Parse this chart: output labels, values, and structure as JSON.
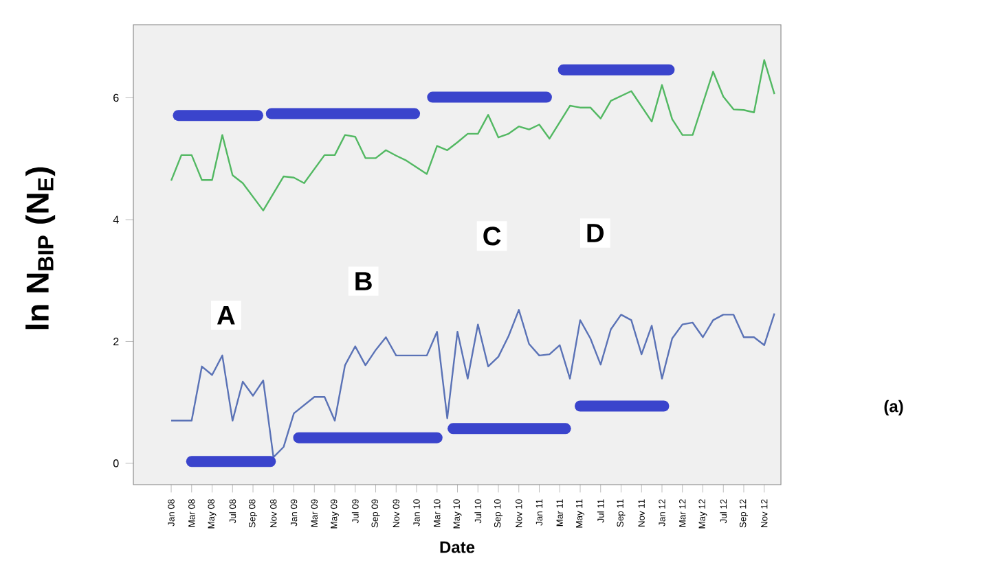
{
  "chart_data": {
    "type": "line",
    "xlabel": "Date",
    "ylabel": "ln N$_{BIP}$ (N$_{E}$)",
    "xlim": [
      "2007-09-10",
      "2012-12-20"
    ],
    "ylim": [
      -0.35,
      7.2
    ],
    "yticks": [
      0,
      2,
      4,
      6
    ],
    "xticks": [
      {
        "value": "2008-01",
        "label": "Jan 08"
      },
      {
        "value": "2008-03",
        "label": "Mar 08"
      },
      {
        "value": "2008-05",
        "label": "May 08"
      },
      {
        "value": "2008-07",
        "label": "Jul 08"
      },
      {
        "value": "2008-09",
        "label": "Sep 08"
      },
      {
        "value": "2008-11",
        "label": "Nov 08"
      },
      {
        "value": "2009-01",
        "label": "Jan 09"
      },
      {
        "value": "2009-03",
        "label": "Mar 09"
      },
      {
        "value": "2009-05",
        "label": "May 09"
      },
      {
        "value": "2009-07",
        "label": "Jul 09"
      },
      {
        "value": "2009-09",
        "label": "Sep 09"
      },
      {
        "value": "2009-11",
        "label": "Nov 09"
      },
      {
        "value": "2010-01",
        "label": "Jan 10"
      },
      {
        "value": "2010-03",
        "label": "Mar 10"
      },
      {
        "value": "2010-05",
        "label": "May 10"
      },
      {
        "value": "2010-07",
        "label": "Jul 10"
      },
      {
        "value": "2010-09",
        "label": "Sep 10"
      },
      {
        "value": "2010-11",
        "label": "Nov 10"
      },
      {
        "value": "2011-01",
        "label": "Jan 11"
      },
      {
        "value": "2011-03",
        "label": "Mar 11"
      },
      {
        "value": "2011-05",
        "label": "May 11"
      },
      {
        "value": "2011-07",
        "label": "Jul 11"
      },
      {
        "value": "2011-09",
        "label": "Sep 11"
      },
      {
        "value": "2011-11",
        "label": "Nov 11"
      },
      {
        "value": "2012-01",
        "label": "Jan 12"
      },
      {
        "value": "2012-03",
        "label": "Mar 12"
      },
      {
        "value": "2012-05",
        "label": "May 12"
      },
      {
        "value": "2012-07",
        "label": "Jul 12"
      },
      {
        "value": "2012-09",
        "label": "Sep 12"
      },
      {
        "value": "2012-11",
        "label": "Nov 12"
      }
    ],
    "series": [
      {
        "color": "#52b862",
        "x": [
          "2008-01",
          "2008-02",
          "2008-03",
          "2008-04",
          "2008-05",
          "2008-06",
          "2008-07",
          "2008-08",
          "2008-10",
          "2008-12",
          "2009-01",
          "2009-02",
          "2009-04",
          "2009-05",
          "2009-06",
          "2009-07",
          "2009-08",
          "2009-09",
          "2009-10",
          "2009-11",
          "2009-12",
          "2010-02",
          "2010-03",
          "2010-04",
          "2010-05",
          "2010-06",
          "2010-07",
          "2010-08",
          "2010-09",
          "2010-10",
          "2010-11",
          "2010-12",
          "2011-01",
          "2011-02",
          "2011-04",
          "2011-05",
          "2011-06",
          "2011-07",
          "2011-08",
          "2011-10",
          "2011-12",
          "2012-01",
          "2012-02",
          "2012-03",
          "2012-04",
          "2012-06",
          "2012-07",
          "2012-08",
          "2012-09",
          "2012-10",
          "2012-11",
          "2012-12"
        ],
        "values": [
          4.64,
          5.06,
          5.06,
          4.65,
          4.65,
          5.39,
          4.73,
          4.6,
          4.15,
          4.71,
          4.69,
          4.6,
          5.06,
          5.06,
          5.39,
          5.36,
          5.01,
          5.01,
          5.14,
          5.05,
          4.97,
          4.75,
          5.21,
          5.14,
          5.27,
          5.41,
          5.41,
          5.72,
          5.35,
          5.41,
          5.53,
          5.48,
          5.56,
          5.33,
          5.87,
          5.84,
          5.84,
          5.66,
          5.95,
          6.11,
          5.61,
          6.21,
          5.65,
          5.39,
          5.39,
          6.43,
          6.02,
          5.81,
          5.8,
          5.76,
          6.62,
          6.06
        ]
      },
      {
        "color": "#5a72b6",
        "x": [
          "2008-01",
          "2008-03",
          "2008-04",
          "2008-05",
          "2008-06",
          "2008-07",
          "2008-08",
          "2008-09",
          "2008-10",
          "2008-11",
          "2008-12",
          "2009-01",
          "2009-03",
          "2009-04",
          "2009-05",
          "2009-06",
          "2009-07",
          "2009-08",
          "2009-09",
          "2009-10",
          "2009-11",
          "2009-12",
          "2010-02",
          "2010-03",
          "2010-04",
          "2010-05",
          "2010-06",
          "2010-07",
          "2010-08",
          "2010-09",
          "2010-10",
          "2010-11",
          "2010-12",
          "2011-01",
          "2011-02",
          "2011-03",
          "2011-04",
          "2011-05",
          "2011-06",
          "2011-07",
          "2011-08",
          "2011-09",
          "2011-10",
          "2011-11",
          "2011-12",
          "2012-01",
          "2012-02",
          "2012-03",
          "2012-04",
          "2012-05",
          "2012-06",
          "2012-07",
          "2012-08",
          "2012-09",
          "2012-10",
          "2012-11",
          "2012-12"
        ],
        "values": [
          0.7,
          0.7,
          1.59,
          1.45,
          1.77,
          0.7,
          1.34,
          1.11,
          1.36,
          0.1,
          0.27,
          0.82,
          1.09,
          1.09,
          0.7,
          1.61,
          1.92,
          1.61,
          1.86,
          2.07,
          1.77,
          1.77,
          1.77,
          2.16,
          0.74,
          2.16,
          1.39,
          2.28,
          1.59,
          1.75,
          2.09,
          2.52,
          1.96,
          1.77,
          1.79,
          1.94,
          1.39,
          2.35,
          2.05,
          1.62,
          2.2,
          2.44,
          2.35,
          1.79,
          2.26,
          1.39,
          2.05,
          2.28,
          2.31,
          2.07,
          2.35,
          2.44,
          2.44,
          2.07,
          2.07,
          1.94,
          2.46
        ]
      },
      {
        "type": "step",
        "color": "#3a44cc",
        "x": [
          "2008-01-22",
          "2008-09-15"
        ],
        "values": [
          5.71,
          5.71
        ]
      },
      {
        "type": "step",
        "color": "#3a44cc",
        "x": [
          "2008-10-25",
          "2009-12-25"
        ],
        "values": [
          5.74,
          5.74
        ]
      },
      {
        "type": "step",
        "color": "#3a44cc",
        "x": [
          "2010-02-18",
          "2011-01-22"
        ],
        "values": [
          6.01,
          6.01
        ]
      },
      {
        "type": "step",
        "color": "#3a44cc",
        "x": [
          "2011-03-12",
          "2012-01-22"
        ],
        "values": [
          6.46,
          6.46
        ]
      },
      {
        "type": "step",
        "color": "#3a44cc",
        "x": [
          "2008-03-01",
          "2008-10-22"
        ],
        "values": [
          0.03,
          0.03
        ]
      },
      {
        "type": "step",
        "color": "#3a44cc",
        "x": [
          "2009-01-15",
          "2010-03-01"
        ],
        "values": [
          0.42,
          0.42
        ]
      },
      {
        "type": "step",
        "color": "#3a44cc",
        "x": [
          "2010-04-18",
          "2011-03-18"
        ],
        "values": [
          0.57,
          0.57
        ]
      },
      {
        "type": "step",
        "color": "#3a44cc",
        "x": [
          "2011-05-01",
          "2012-01-06"
        ],
        "values": [
          0.94,
          0.94
        ]
      }
    ],
    "annotations": [
      {
        "text": "A",
        "x": "2008-06-12",
        "y": 2.43
      },
      {
        "text": "B",
        "x": "2009-07-25",
        "y": 2.99
      },
      {
        "text": "C",
        "x": "2010-08-12",
        "y": 3.73
      },
      {
        "text": "D",
        "x": "2011-06-15",
        "y": 3.78
      },
      "(a)"
    ]
  }
}
